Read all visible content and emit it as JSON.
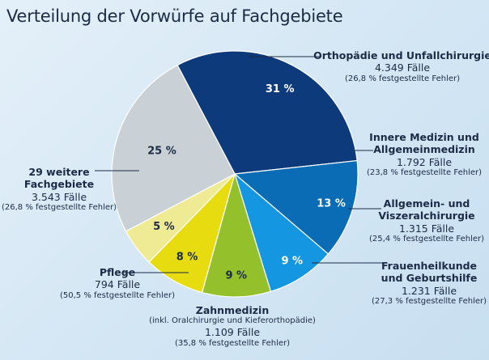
{
  "chart_data": {
    "type": "pie",
    "title": "Verteilung der Vorwürfe auf Fachgebiete",
    "slices": [
      {
        "name": "Orthopädie und Unfallchirurgie",
        "value": 31,
        "label": "31 %",
        "cases": "4.349 Fälle",
        "note": "(26,8 % festgestellte Fehler)",
        "color": "#0d3a7a"
      },
      {
        "name": "Innere Medizin und Allgemeinmedizin",
        "name_lines": [
          "Innere Medizin und",
          "Allgemeinmedizin"
        ],
        "value": 13,
        "label": "13 %",
        "cases": "1.792 Fälle",
        "note": "(23,8 % festgestellte Fehler)",
        "color": "#0a6cb5"
      },
      {
        "name": "Allgemein- und Viszeralchirurgie",
        "name_lines": [
          "Allgemein- und",
          "Viszeralchirurgie"
        ],
        "value": 9,
        "label": "9 %",
        "cases": "1.315 Fälle",
        "note": "(25,4 % festgestellte Fehler)",
        "color": "#1596e0"
      },
      {
        "name": "Frauenheilkunde und Geburtshilfe",
        "name_lines": [
          "Frauenheilkunde",
          "und Geburtshilfe"
        ],
        "value": 9,
        "label": "9 %",
        "cases": "1.231 Fälle",
        "note": "(27,3 % festgestellte Fehler)",
        "color": "#94c02c"
      },
      {
        "name": "Zahnmedizin",
        "name_lines": [
          "Zahnmedizin"
        ],
        "subtitle": "(inkl. Oralchirurgie und Kieferorthopädie)",
        "value": 8,
        "label": "8 %",
        "cases": "1.109 Fälle",
        "note": "(35,8 % festgestellte Fehler)",
        "color": "#e6dc10"
      },
      {
        "name": "Pflege",
        "name_lines": [
          "Pflege"
        ],
        "value": 5,
        "label": "5 %",
        "cases": "794 Fälle",
        "note": "(50,5 % festgestellte Fehler)",
        "color": "#efea94"
      },
      {
        "name": "29 weitere Fachgebiete",
        "name_lines": [
          "29 weitere",
          "Fachgebiete"
        ],
        "value": 25,
        "label": "25 %",
        "cases": "3.543 Fälle",
        "note": "(26,8 % festgestellte Fehler)",
        "color": "#c9d1d7"
      }
    ]
  }
}
